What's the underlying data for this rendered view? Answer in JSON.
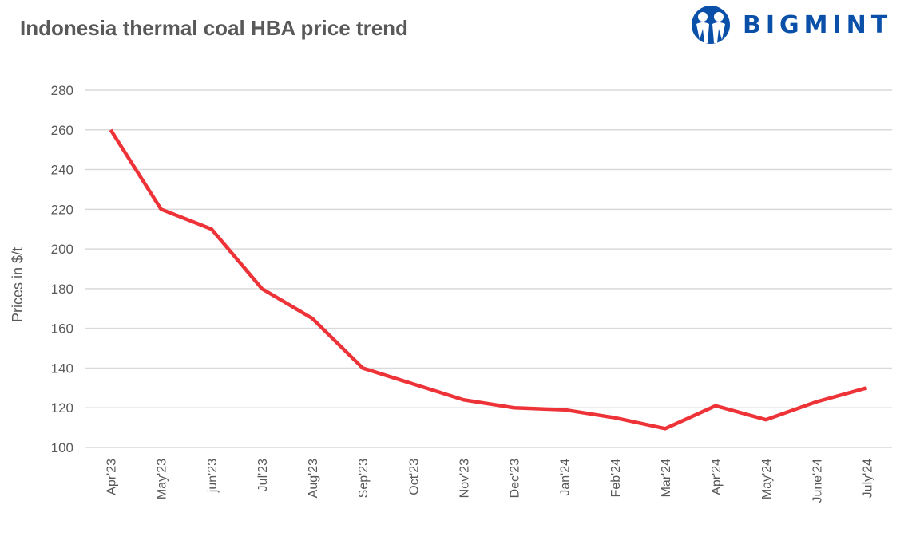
{
  "chart_data": {
    "type": "line",
    "title": "Indonesia thermal coal HBA price trend",
    "xlabel": "",
    "ylabel": "Prices in $/t",
    "ylim": [
      100,
      280
    ],
    "yticks": [
      100,
      120,
      140,
      160,
      180,
      200,
      220,
      240,
      260,
      280
    ],
    "grid": true,
    "categories": [
      "Apr'23",
      "May'23",
      "jun'23",
      "Jul'23",
      "Aug'23",
      "Sep'23",
      "Oct'23",
      "Nov'23",
      "Dec'23",
      "Jan'24",
      "Feb'24",
      "Mar'24",
      "Apr'24",
      "May'24",
      "June'24",
      "July'24"
    ],
    "series": [
      {
        "values": [
          260,
          220,
          210,
          180,
          165,
          140,
          132,
          124,
          120,
          119,
          115,
          109.5,
          121,
          114,
          123,
          130
        ],
        "color": "#ee3338"
      }
    ]
  },
  "logo": {
    "text": "BIGMINT",
    "color": "#0a4fa8"
  }
}
